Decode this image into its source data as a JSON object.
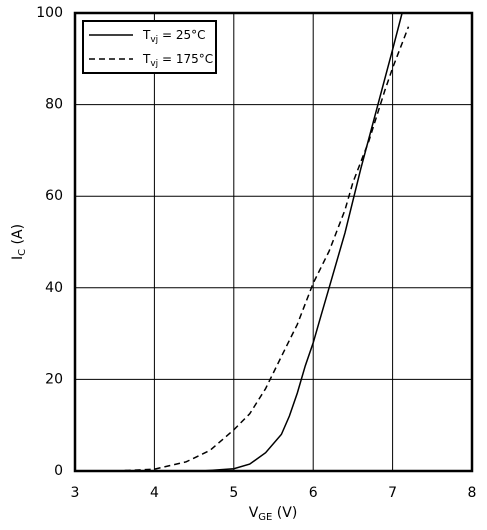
{
  "chart_data": {
    "type": "line",
    "xlabel": [
      "V",
      "GE",
      " (V)"
    ],
    "ylabel": [
      "I",
      "C",
      " (A)"
    ],
    "xlim": [
      3,
      8
    ],
    "xticks": [
      3,
      4,
      5,
      6,
      7,
      8
    ],
    "ylim": [
      0,
      100
    ],
    "yticks": [
      0,
      20,
      40,
      60,
      80,
      100
    ],
    "grid": true,
    "legend": "upper-left",
    "series": [
      {
        "name": [
          "T",
          "vj",
          " = 25°C"
        ],
        "color": "#000000",
        "style": "solid",
        "x": [
          3,
          4.6,
          5.0,
          5.2,
          5.4,
          5.6,
          5.7,
          5.8,
          5.9,
          6.0,
          6.1,
          6.2,
          6.4,
          6.6,
          6.8,
          7.0,
          7.12
        ],
        "values": [
          0,
          0,
          0.5,
          1.5,
          4,
          8,
          12,
          17,
          23,
          28,
          34,
          40,
          52,
          66,
          79,
          92,
          100
        ]
      },
      {
        "name": [
          "T",
          "vj",
          " = 175°C"
        ],
        "color": "#000000",
        "style": "dashed",
        "x": [
          3.5,
          4.0,
          4.4,
          4.7,
          5.0,
          5.2,
          5.4,
          5.6,
          5.8,
          6.0,
          6.2,
          6.4,
          6.5,
          6.7,
          6.9,
          7.0,
          7.2
        ],
        "values": [
          0,
          0.4,
          2,
          4.5,
          9,
          12.5,
          18,
          25,
          32,
          41,
          48,
          57,
          63,
          72,
          83,
          88,
          97
        ]
      }
    ]
  }
}
